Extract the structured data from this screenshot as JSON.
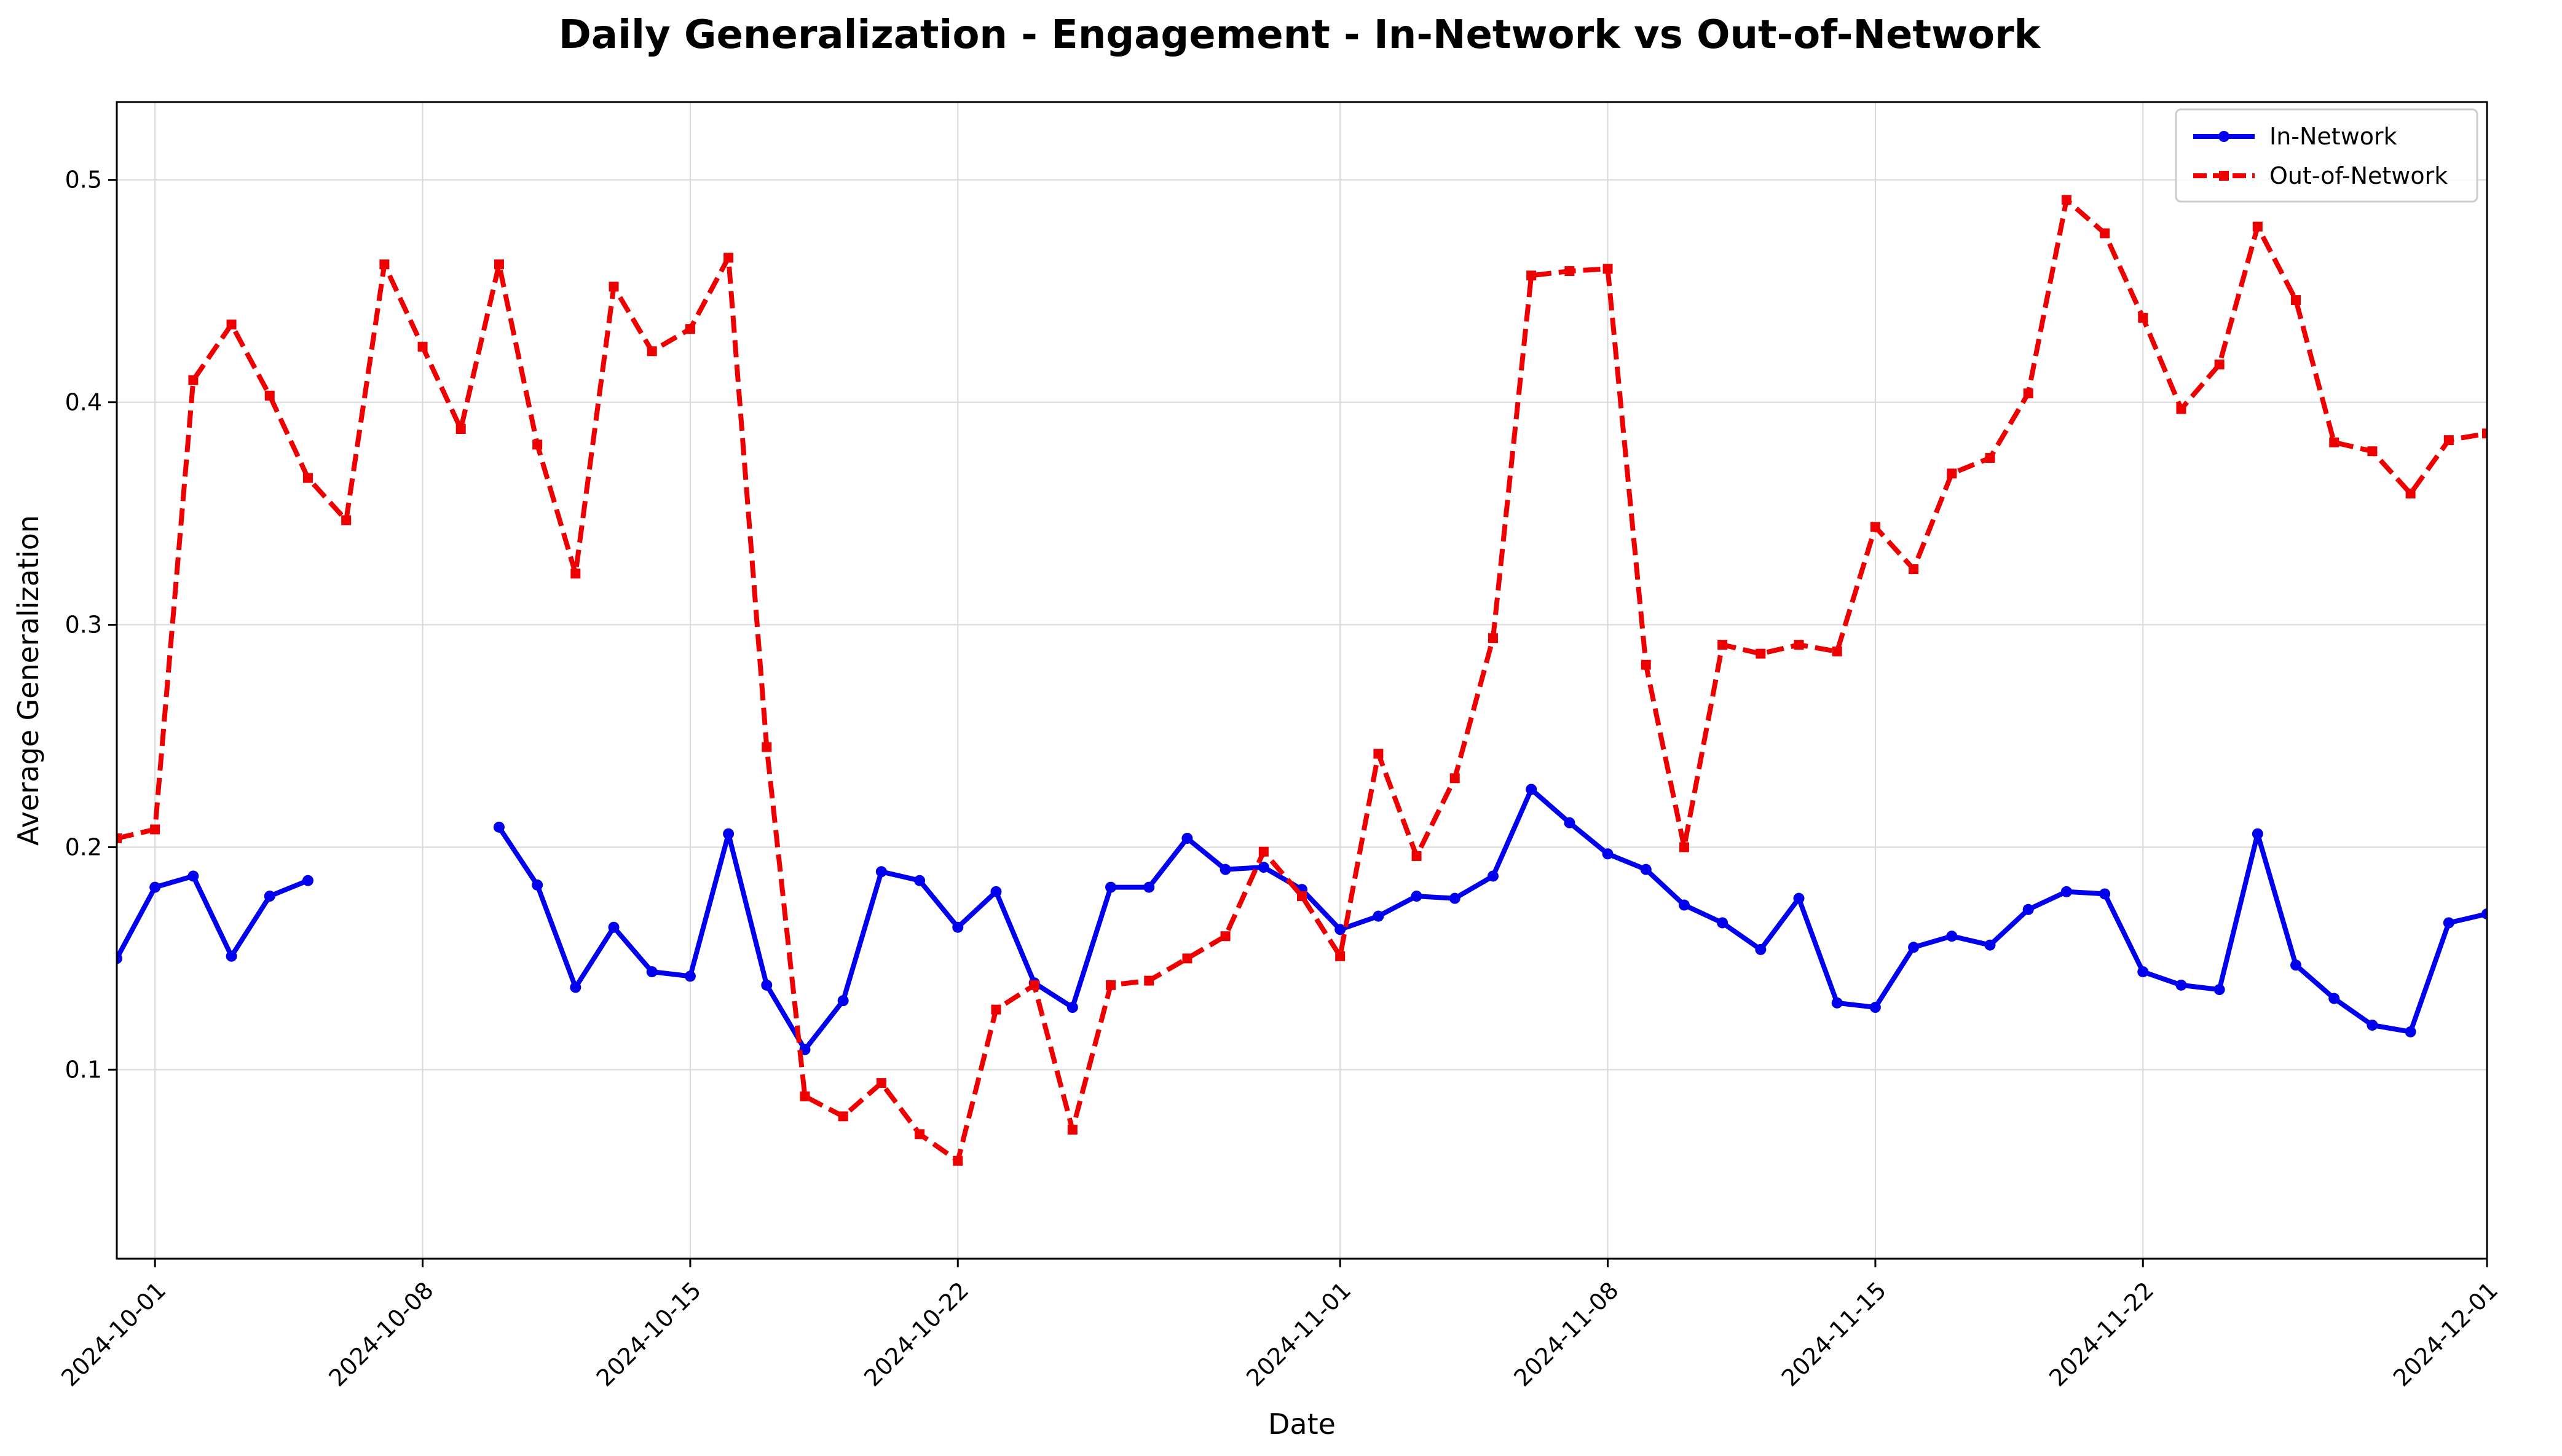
{
  "chart_data": {
    "type": "line",
    "title": "Daily Generalization - Engagement - In-Network vs Out-of-Network",
    "xlabel": "Date",
    "ylabel": "Average Generalization",
    "x_tick_labels": [
      "2024-10-01",
      "2024-10-08",
      "2024-10-15",
      "2024-10-22",
      "2024-11-01",
      "2024-11-08",
      "2024-11-15",
      "2024-11-22",
      "2024-12-01"
    ],
    "y_tick_labels": [
      "0.1",
      "0.2",
      "0.3",
      "0.4",
      "0.5"
    ],
    "xlim": [
      "2024-09-30",
      "2024-12-01"
    ],
    "ylim": [
      0.015,
      0.535
    ],
    "grid": true,
    "legend_position": "top-right",
    "dates": [
      "2024-09-30",
      "2024-10-01",
      "2024-10-02",
      "2024-10-03",
      "2024-10-04",
      "2024-10-05",
      "2024-10-06",
      "2024-10-07",
      "2024-10-08",
      "2024-10-09",
      "2024-10-10",
      "2024-10-11",
      "2024-10-12",
      "2024-10-13",
      "2024-10-14",
      "2024-10-15",
      "2024-10-16",
      "2024-10-17",
      "2024-10-18",
      "2024-10-19",
      "2024-10-20",
      "2024-10-21",
      "2024-10-22",
      "2024-10-23",
      "2024-10-24",
      "2024-10-25",
      "2024-10-26",
      "2024-10-27",
      "2024-10-28",
      "2024-10-29",
      "2024-10-30",
      "2024-10-31",
      "2024-11-01",
      "2024-11-02",
      "2024-11-03",
      "2024-11-04",
      "2024-11-05",
      "2024-11-06",
      "2024-11-07",
      "2024-11-08",
      "2024-11-09",
      "2024-11-10",
      "2024-11-11",
      "2024-11-12",
      "2024-11-13",
      "2024-11-14",
      "2024-11-15",
      "2024-11-16",
      "2024-11-17",
      "2024-11-18",
      "2024-11-19",
      "2024-11-20",
      "2024-11-21",
      "2024-11-22",
      "2024-11-23",
      "2024-11-24",
      "2024-11-25",
      "2024-11-26",
      "2024-11-27",
      "2024-11-28",
      "2024-11-29",
      "2024-11-30",
      "2024-12-01"
    ],
    "series": [
      {
        "name": "In-Network",
        "color": "#0000ee",
        "style": "solid",
        "marker": "circle",
        "values": [
          0.15,
          0.182,
          0.187,
          0.151,
          0.178,
          0.185,
          null,
          null,
          null,
          null,
          0.209,
          0.183,
          0.137,
          0.164,
          0.144,
          0.142,
          0.206,
          0.138,
          0.109,
          0.131,
          0.189,
          0.185,
          0.164,
          0.18,
          0.139,
          0.128,
          0.182,
          0.182,
          0.204,
          0.19,
          0.191,
          0.181,
          0.163,
          0.169,
          0.178,
          0.177,
          0.187,
          0.226,
          0.211,
          0.197,
          0.19,
          0.174,
          0.166,
          0.154,
          0.177,
          0.13,
          0.128,
          0.155,
          0.16,
          0.156,
          0.172,
          0.18,
          0.179,
          0.144,
          0.138,
          0.136,
          0.206,
          0.147,
          0.132,
          0.12,
          0.117,
          0.166,
          0.17
        ]
      },
      {
        "name": "Out-of-Network",
        "color": "#ee0000",
        "style": "dashed",
        "marker": "square",
        "values": [
          0.204,
          0.208,
          0.41,
          0.435,
          0.403,
          0.366,
          0.347,
          0.462,
          0.425,
          0.388,
          0.462,
          0.381,
          0.323,
          0.452,
          0.423,
          0.433,
          0.465,
          0.245,
          0.088,
          0.079,
          0.094,
          0.071,
          0.059,
          0.127,
          0.138,
          0.073,
          0.138,
          0.14,
          0.15,
          0.16,
          0.198,
          0.178,
          0.151,
          0.242,
          0.196,
          0.231,
          0.294,
          0.457,
          0.459,
          0.46,
          0.282,
          0.2,
          0.291,
          0.287,
          0.291,
          0.288,
          0.344,
          0.325,
          0.368,
          0.375,
          0.404,
          0.491,
          0.476,
          0.438,
          0.397,
          0.417,
          0.479,
          0.446,
          0.382,
          0.378,
          0.359,
          0.383,
          0.386
        ]
      }
    ]
  }
}
